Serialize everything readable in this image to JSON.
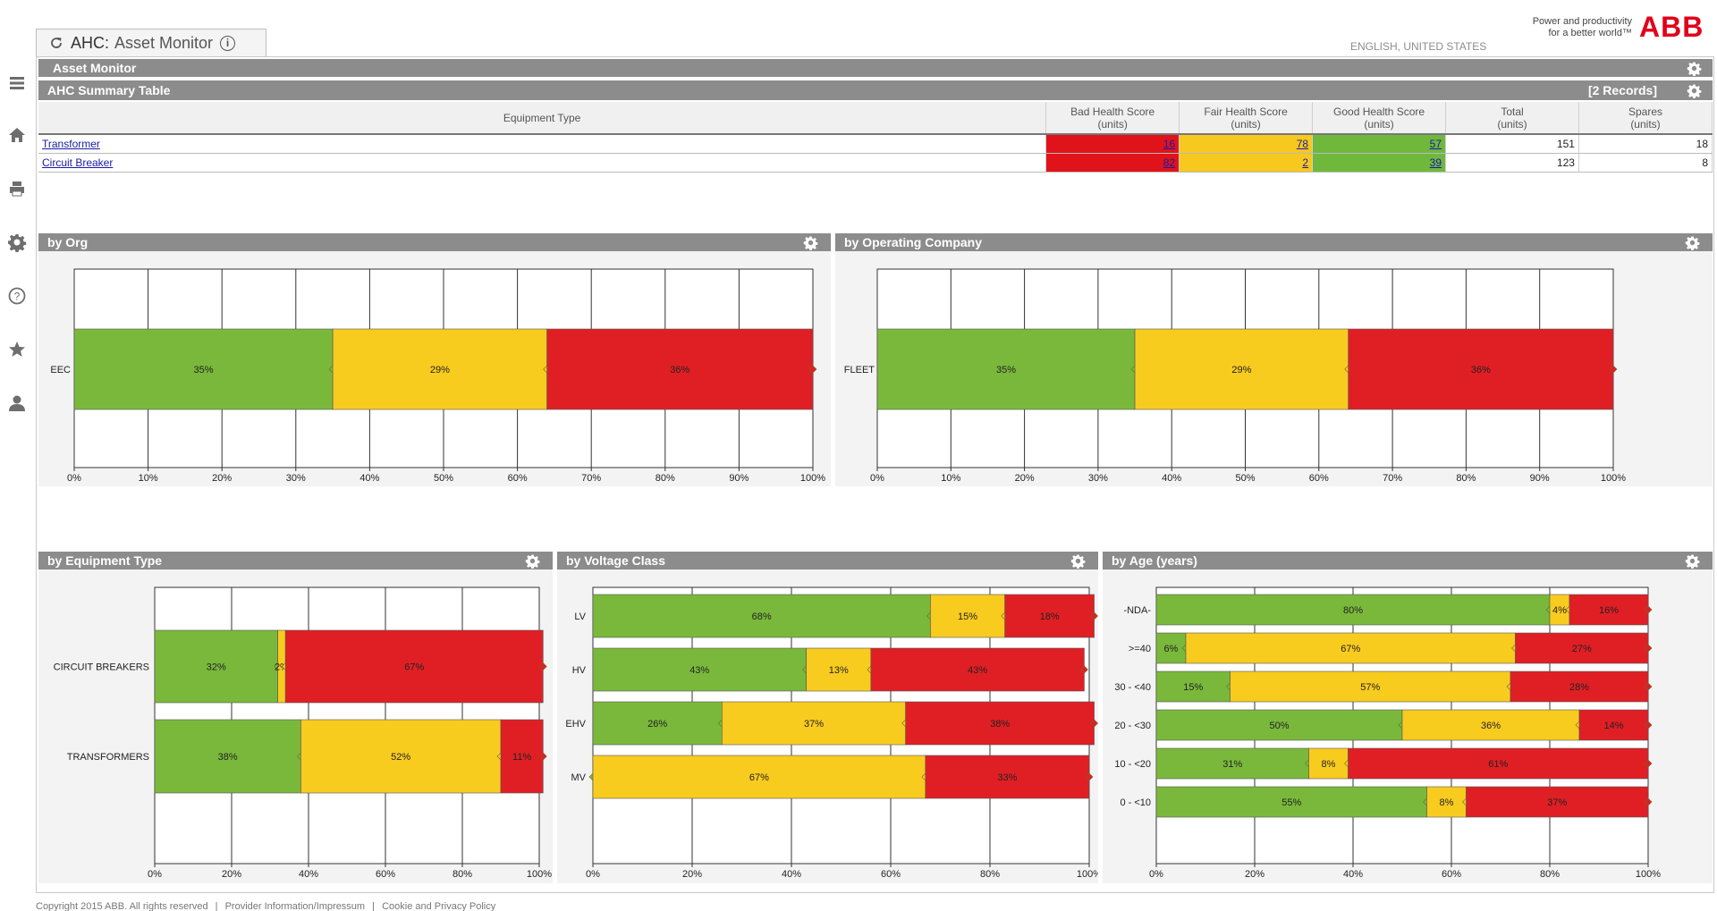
{
  "tab": {
    "prefix": "AHC:",
    "title": "Asset Monitor",
    "info_icon": "info-icon"
  },
  "header": {
    "language": "ENGLISH, UNITED STATES",
    "tagline_1": "Power and productivity",
    "tagline_2": "for a better world™",
    "logo_text": "ABB"
  },
  "colors": {
    "good": "#7ab83c",
    "fair": "#f8cb1f",
    "bad": "#e01f25",
    "bar": "#8c8c8c"
  },
  "asset_monitor_title": "Asset Monitor",
  "summary": {
    "title": "AHC Summary Table",
    "records": "[2 Records]",
    "columns": [
      {
        "line1": "Equipment Type",
        "line2": ""
      },
      {
        "line1": "Bad Health Score",
        "line2": "(units)"
      },
      {
        "line1": "Fair Health Score",
        "line2": "(units)"
      },
      {
        "line1": "Good Health Score",
        "line2": "(units)"
      },
      {
        "line1": "Total",
        "line2": "(units)"
      },
      {
        "line1": "Spares",
        "line2": "(units)"
      }
    ],
    "rows": [
      {
        "name": "Transformer",
        "bad": "16",
        "fair": "78",
        "good": "57",
        "total": "151",
        "spares": "18"
      },
      {
        "name": "Circuit Breaker",
        "bad": "82",
        "fair": "2",
        "good": "39",
        "total": "123",
        "spares": "8"
      }
    ]
  },
  "chart_data": [
    {
      "id": "org",
      "panel_title": "by Org",
      "type": "bar",
      "orientation": "horizontal",
      "stacked": true,
      "categories": [
        "EEC"
      ],
      "series": [
        {
          "key": "good",
          "values": [
            35
          ]
        },
        {
          "key": "fair",
          "values": [
            29
          ]
        },
        {
          "key": "bad",
          "values": [
            36
          ]
        }
      ],
      "xlim": [
        0,
        100
      ],
      "ticks": [
        "0%",
        "10%",
        "20%",
        "30%",
        "40%",
        "50%",
        "60%",
        "70%",
        "80%",
        "90%",
        "100%"
      ]
    },
    {
      "id": "opco",
      "panel_title": "by Operating Company",
      "type": "bar",
      "orientation": "horizontal",
      "stacked": true,
      "categories": [
        "FLEET"
      ],
      "series": [
        {
          "key": "good",
          "values": [
            35
          ]
        },
        {
          "key": "fair",
          "values": [
            29
          ]
        },
        {
          "key": "bad",
          "values": [
            36
          ]
        }
      ],
      "xlim": [
        0,
        100
      ],
      "ticks": [
        "0%",
        "10%",
        "20%",
        "30%",
        "40%",
        "50%",
        "60%",
        "70%",
        "80%",
        "90%",
        "100%"
      ]
    },
    {
      "id": "equip",
      "panel_title": "by Equipment Type",
      "type": "bar",
      "orientation": "horizontal",
      "stacked": true,
      "categories": [
        "CIRCUIT BREAKERS",
        "TRANSFORMERS"
      ],
      "series": [
        {
          "key": "good",
          "values": [
            32,
            38
          ]
        },
        {
          "key": "fair",
          "values": [
            2,
            52
          ]
        },
        {
          "key": "bad",
          "values": [
            67,
            11
          ]
        }
      ],
      "labels": [
        [
          "32%",
          "2%",
          "67%"
        ],
        [
          "38%",
          "52%",
          "11%"
        ]
      ],
      "xlim": [
        0,
        100
      ],
      "ticks": [
        "0%",
        "20%",
        "40%",
        "60%",
        "80%",
        "100%"
      ]
    },
    {
      "id": "volt",
      "panel_title": "by Voltage Class",
      "type": "bar",
      "orientation": "horizontal",
      "stacked": true,
      "categories": [
        "LV",
        "HV",
        "EHV",
        "MV"
      ],
      "series": [
        {
          "key": "good",
          "values": [
            68,
            43,
            26,
            0
          ]
        },
        {
          "key": "fair",
          "values": [
            15,
            13,
            37,
            67
          ]
        },
        {
          "key": "bad",
          "values": [
            18,
            43,
            38,
            33
          ]
        }
      ],
      "labels": [
        [
          "68%",
          "15%",
          "18%"
        ],
        [
          "43%",
          "13%",
          "43%"
        ],
        [
          "26%",
          "37%",
          "38%"
        ],
        [
          "",
          "67%",
          "33%"
        ]
      ],
      "xlim": [
        0,
        100
      ],
      "ticks": [
        "0%",
        "20%",
        "40%",
        "60%",
        "80%",
        "100%"
      ]
    },
    {
      "id": "age",
      "panel_title": "by Age (years)",
      "type": "bar",
      "orientation": "horizontal",
      "stacked": true,
      "categories": [
        "-NDA-",
        ">=40",
        "30 - <40",
        "20 - <30",
        "10 - <20",
        "0 - <10"
      ],
      "series": [
        {
          "key": "good",
          "values": [
            80,
            6,
            15,
            50,
            31,
            55
          ]
        },
        {
          "key": "fair",
          "values": [
            4,
            67,
            57,
            36,
            8,
            8
          ]
        },
        {
          "key": "bad",
          "values": [
            16,
            27,
            28,
            14,
            61,
            37
          ]
        }
      ],
      "labels": [
        [
          "80%",
          "4%",
          "16%"
        ],
        [
          "6%",
          "67%",
          "27%"
        ],
        [
          "15%",
          "57%",
          "28%"
        ],
        [
          "50%",
          "36%",
          "14%"
        ],
        [
          "31%",
          "8%",
          "61%"
        ],
        [
          "55%",
          "8%",
          "37%"
        ]
      ],
      "xlim": [
        0,
        100
      ],
      "ticks": [
        "0%",
        "20%",
        "40%",
        "60%",
        "80%",
        "100%"
      ]
    }
  ],
  "footer": {
    "copyright": "Copyright 2015 ABB. All rights reserved",
    "sep": "|",
    "link1": "Provider Information/Impressum",
    "link2": "Cookie and Privacy Policy"
  }
}
